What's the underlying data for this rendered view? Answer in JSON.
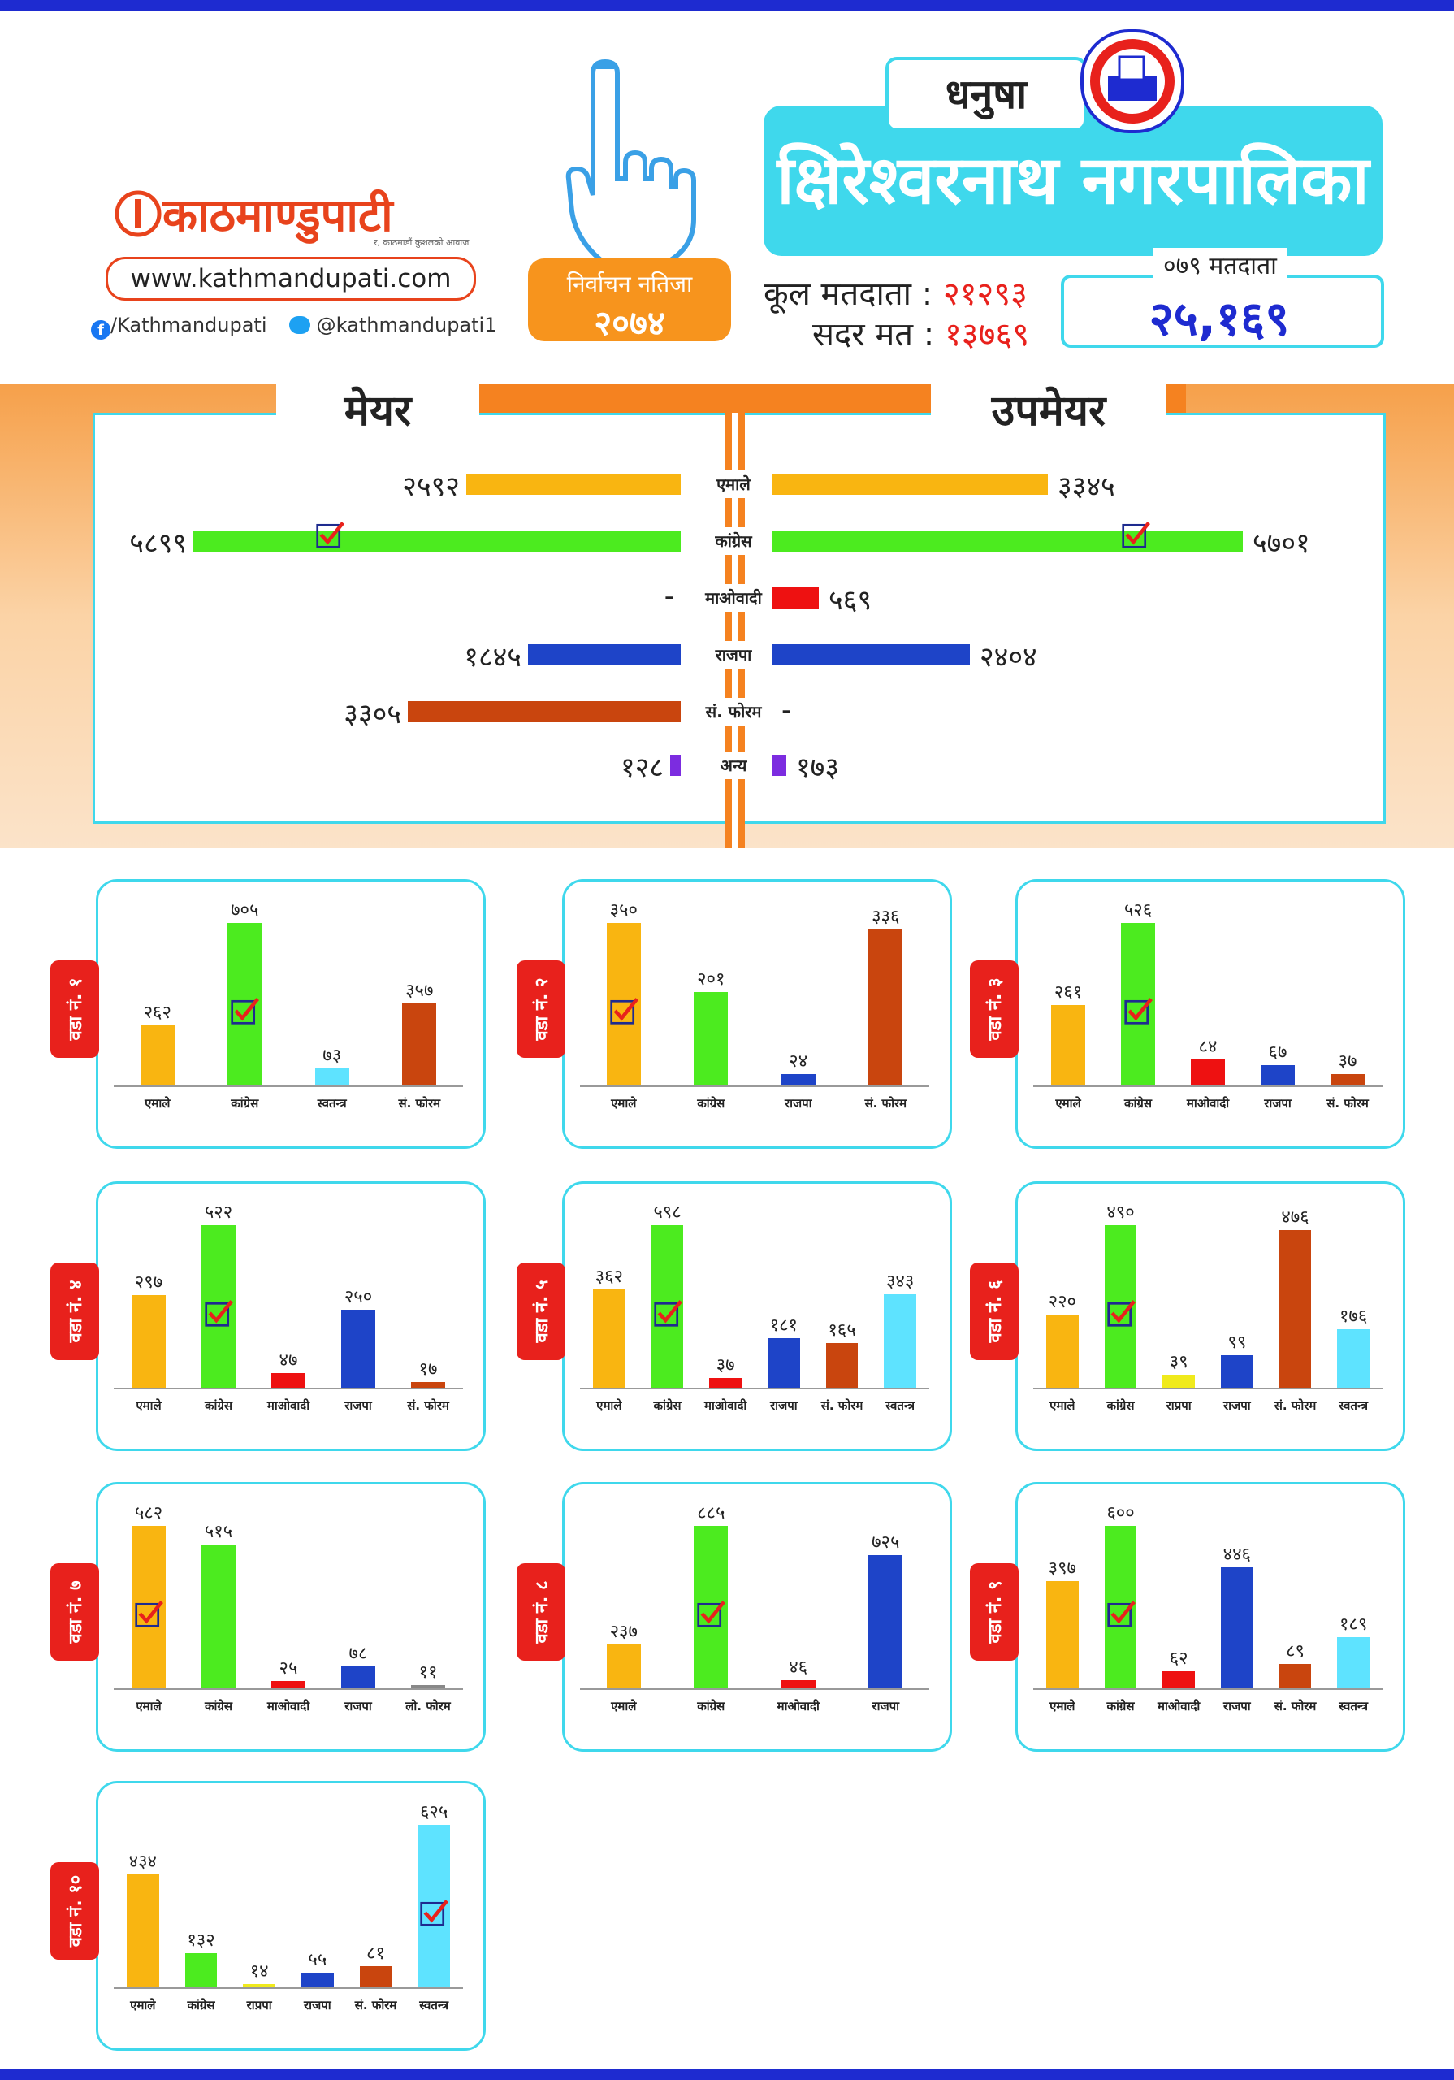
{
  "header": {
    "logo_text": "काठमाण्डुपाटी",
    "logo_tagline": "र, काठमाडौं कुशलको आवाज",
    "website": "www.kathmandupati.com",
    "facebook": "/Kathmandupati",
    "twitter": "@kathmandupati1",
    "badge_line1": "निर्वाचन नतिजा",
    "badge_line2": "२०७४",
    "district": "धनुषा",
    "municipality": "क्षिरेश्वरनाथ नगरपालिका",
    "total_voters_label": "कूल मतदाता :",
    "total_voters": "२१२९३",
    "valid_votes_label": "सदर मत :",
    "valid_votes": "१३७६९",
    "voters_079_label": "०७९ मतदाता",
    "voters_079": "२५,१६९"
  },
  "colors": {
    "एमाले": "#f9b511",
    "कांग्रेस": "#4ceb1f",
    "माओवादी": "#ee1111",
    "राजपा": "#1e44c8",
    "सं. फोरम": "#c9450e",
    "अन्य": "#7c2ce0",
    "स्वतन्त्र": "#5ee3ff",
    "राप्रपा": "#f0ea1c",
    "लो. फोरम": "#888888"
  },
  "chart_data": [
    {
      "type": "bar",
      "title": "मेयर / उपमेयर",
      "left_title": "मेयर",
      "right_title": "उपमेयर",
      "categories": [
        "एमाले",
        "कांग्रेस",
        "माओवादी",
        "राजपा",
        "सं. फोरम",
        "अन्य"
      ],
      "series": [
        {
          "name": "मेयर",
          "values": [
            2592,
            5899,
            null,
            1845,
            3305,
            128
          ],
          "labels": [
            "२५९२",
            "५८९९",
            "-",
            "१८४५",
            "३३०५",
            "१२८"
          ]
        },
        {
          "name": "उपमेयर",
          "values": [
            3345,
            5701,
            569,
            2404,
            null,
            173
          ],
          "labels": [
            "३३४५",
            "५७०१",
            "५६९",
            "२४०४",
            "-",
            "१७३"
          ]
        }
      ],
      "winner": "कांग्रेस"
    },
    {
      "type": "bar",
      "title": "वडा नं. १",
      "categories": [
        "एमाले",
        "कांग्रेस",
        "स्वतन्त्र",
        "सं. फोरम"
      ],
      "values": [
        262,
        705,
        73,
        357
      ],
      "labels": [
        "२६२",
        "७०५",
        "७३",
        "३५७"
      ],
      "winner_index": 1
    },
    {
      "type": "bar",
      "title": "वडा नं. २",
      "categories": [
        "एमाले",
        "कांग्रेस",
        "राजपा",
        "सं. फोरम"
      ],
      "values": [
        350,
        201,
        24,
        336
      ],
      "labels": [
        "३५०",
        "२०१",
        "२४",
        "३३६"
      ],
      "winner_index": 0
    },
    {
      "type": "bar",
      "title": "वडा नं. ३",
      "categories": [
        "एमाले",
        "कांग्रेस",
        "माओवादी",
        "राजपा",
        "सं. फोरम"
      ],
      "values": [
        261,
        526,
        84,
        67,
        37
      ],
      "labels": [
        "२६१",
        "५२६",
        "८४",
        "६७",
        "३७"
      ],
      "winner_index": 1
    },
    {
      "type": "bar",
      "title": "वडा नं. ४",
      "categories": [
        "एमाले",
        "कांग्रेस",
        "माओवादी",
        "राजपा",
        "सं. फोरम"
      ],
      "values": [
        297,
        522,
        47,
        250,
        17
      ],
      "labels": [
        "२९७",
        "५२२",
        "४७",
        "२५०",
        "१७"
      ],
      "winner_index": 1
    },
    {
      "type": "bar",
      "title": "वडा नं. ५",
      "categories": [
        "एमाले",
        "कांग्रेस",
        "माओवादी",
        "राजपा",
        "सं. फोरम",
        "स्वतन्त्र"
      ],
      "values": [
        362,
        598,
        37,
        181,
        165,
        343
      ],
      "labels": [
        "३६२",
        "५९८",
        "३७",
        "१८१",
        "१६५",
        "३४३"
      ],
      "winner_index": 1
    },
    {
      "type": "bar",
      "title": "वडा नं. ६",
      "categories": [
        "एमाले",
        "कांग्रेस",
        "राप्रपा",
        "राजपा",
        "सं. फोरम",
        "स्वतन्त्र"
      ],
      "values": [
        220,
        490,
        39,
        99,
        476,
        176
      ],
      "labels": [
        "२२०",
        "४९०",
        "३९",
        "९९",
        "४७६",
        "१७६"
      ],
      "winner_index": 1
    },
    {
      "type": "bar",
      "title": "वडा नं. ७",
      "categories": [
        "एमाले",
        "कांग्रेस",
        "माओवादी",
        "राजपा",
        "लो. फोरम"
      ],
      "values": [
        582,
        515,
        25,
        78,
        11
      ],
      "labels": [
        "५८२",
        "५१५",
        "२५",
        "७८",
        "११"
      ],
      "winner_index": 0
    },
    {
      "type": "bar",
      "title": "वडा नं. ८",
      "categories": [
        "एमाले",
        "कांग्रेस",
        "माओवादी",
        "राजपा"
      ],
      "values": [
        237,
        885,
        46,
        725
      ],
      "labels": [
        "२३७",
        "८८५",
        "४६",
        "७२५"
      ],
      "winner_index": 1
    },
    {
      "type": "bar",
      "title": "वडा नं. ९",
      "categories": [
        "एमाले",
        "कांग्रेस",
        "माओवादी",
        "राजपा",
        "सं. फोरम",
        "स्वतन्त्र"
      ],
      "values": [
        397,
        600,
        62,
        446,
        89,
        189
      ],
      "labels": [
        "३९७",
        "६००",
        "६२",
        "४४६",
        "८९",
        "१८९"
      ],
      "winner_index": 1
    },
    {
      "type": "bar",
      "title": "वडा नं. १०",
      "categories": [
        "एमाले",
        "कांग्रेस",
        "राप्रपा",
        "राजपा",
        "सं. फोरम",
        "स्वतन्त्र"
      ],
      "values": [
        434,
        132,
        14,
        55,
        81,
        625
      ],
      "labels": [
        "४३४",
        "१३२",
        "१४",
        "५५",
        "८१",
        "६२५"
      ],
      "winner_index": 5
    }
  ]
}
